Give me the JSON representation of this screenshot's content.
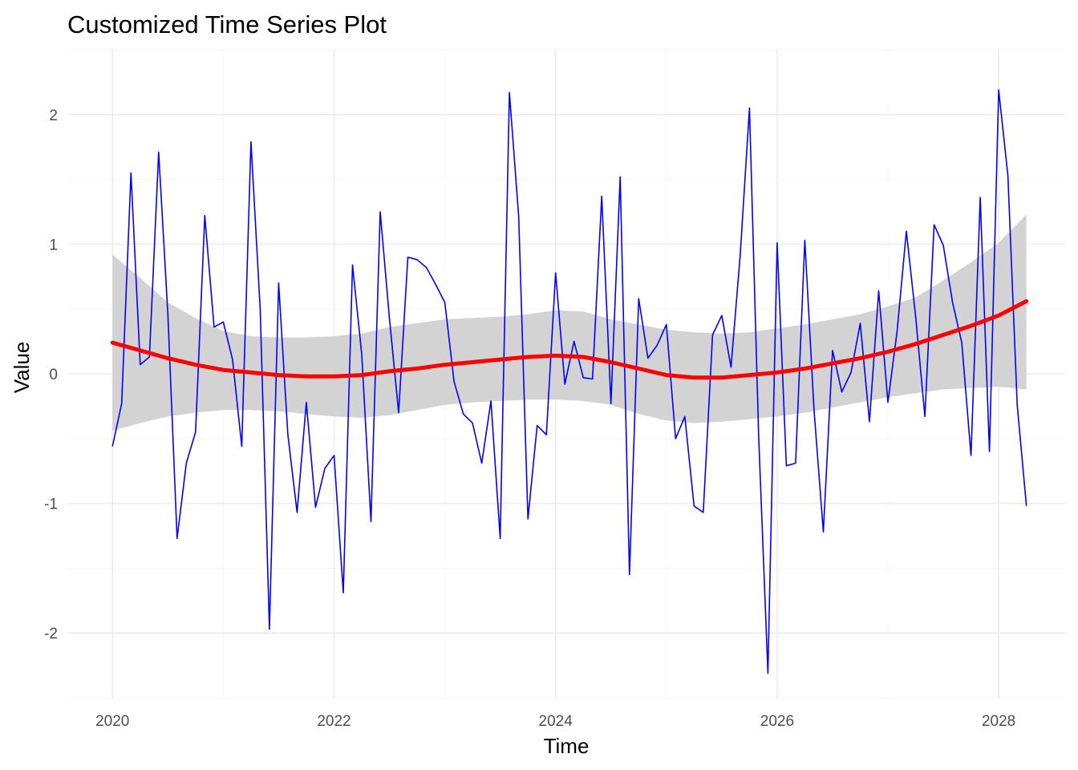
{
  "chart_data": {
    "type": "line",
    "title": "Customized Time Series Plot",
    "xlabel": "Time",
    "ylabel": "Value",
    "xlim": [
      2019.6,
      2028.6
    ],
    "ylim": [
      -2.5,
      2.5
    ],
    "x_ticks": [
      2020,
      2022,
      2024,
      2026,
      2028
    ],
    "x_tick_labels": [
      "2020",
      "2022",
      "2024",
      "2026",
      "2028"
    ],
    "y_ticks": [
      -2,
      -1,
      0,
      1,
      2
    ],
    "y_tick_labels": [
      "-2",
      "-1",
      "0",
      "1",
      "2"
    ],
    "grid": true,
    "theme": "minimal",
    "colors": {
      "series": "#0000ff",
      "smooth": "#ff0000",
      "ribbon": "#d3d3d3",
      "grid_major": "#ebebeb",
      "grid_minor": "#f5f5f5"
    },
    "series": [
      {
        "x": [
          2020.0,
          2020.0833,
          2020.1667,
          2020.25,
          2020.3333,
          2020.4167,
          2020.5,
          2020.5833,
          2020.6667,
          2020.75,
          2020.8333,
          2020.9167,
          2021.0,
          2021.0833,
          2021.1667,
          2021.25,
          2021.3333,
          2021.4167,
          2021.5,
          2021.5833,
          2021.6667,
          2021.75,
          2021.8333,
          2021.9167,
          2022.0,
          2022.0833,
          2022.1667,
          2022.25,
          2022.3333,
          2022.4167,
          2022.5,
          2022.5833,
          2022.6667,
          2022.75,
          2022.8333,
          2022.9167,
          2023.0,
          2023.0833,
          2023.1667,
          2023.25,
          2023.3333,
          2023.4167,
          2023.5,
          2023.5833,
          2023.6667,
          2023.75,
          2023.8333,
          2023.9167,
          2024.0,
          2024.0833,
          2024.1667,
          2024.25,
          2024.3333,
          2024.4167,
          2024.5,
          2024.5833,
          2024.6667,
          2024.75,
          2024.8333,
          2024.9167,
          2025.0,
          2025.0833,
          2025.1667,
          2025.25,
          2025.3333,
          2025.4167,
          2025.5,
          2025.5833,
          2025.6667,
          2025.75,
          2025.8333,
          2025.9167,
          2026.0,
          2026.0833,
          2026.1667,
          2026.25,
          2026.3333,
          2026.4167,
          2026.5,
          2026.5833,
          2026.6667,
          2026.75,
          2026.8333,
          2026.9167,
          2027.0,
          2027.0833,
          2027.1667,
          2027.25,
          2027.3333,
          2027.4167,
          2027.5,
          2027.5833,
          2027.6667,
          2027.75,
          2027.8333,
          2027.9167,
          2028.0,
          2028.0833,
          2028.1667,
          2028.25
        ],
        "values": [
          -0.56,
          -0.23,
          1.55,
          0.07,
          0.13,
          1.71,
          0.46,
          -1.27,
          -0.69,
          -0.45,
          1.22,
          0.36,
          0.4,
          0.11,
          -0.56,
          1.79,
          0.5,
          -1.97,
          0.7,
          -0.47,
          -1.07,
          -0.22,
          -1.03,
          -0.73,
          -0.63,
          -1.69,
          0.84,
          0.15,
          -1.14,
          1.25,
          0.43,
          -0.3,
          0.9,
          0.88,
          0.82,
          0.69,
          0.55,
          -0.06,
          -0.31,
          -0.38,
          -0.69,
          -0.21,
          -1.27,
          2.17,
          1.21,
          -1.12,
          -0.4,
          -0.47,
          0.78,
          -0.08,
          0.25,
          -0.03,
          -0.04,
          1.37,
          -0.23,
          1.52,
          -1.55,
          0.58,
          0.12,
          0.22,
          0.38,
          -0.5,
          -0.33,
          -1.02,
          -1.07,
          0.3,
          0.45,
          0.05,
          0.92,
          2.05,
          -0.49,
          -2.31,
          1.01,
          -0.71,
          -0.69,
          1.03,
          -0.28,
          -1.22,
          0.18,
          -0.14,
          0.01,
          0.39,
          -0.37,
          0.64,
          -0.22,
          0.33,
          1.1,
          0.44,
          -0.33,
          1.15,
          0.99,
          0.55,
          0.24,
          -0.63,
          1.36,
          -0.6,
          2.19,
          1.53,
          -0.24,
          -1.02
        ]
      },
      {
        "x": [
          2020.0,
          2020.25,
          2020.5,
          2020.75,
          2021.0,
          2021.25,
          2021.5,
          2021.75,
          2022.0,
          2022.25,
          2022.5,
          2022.75,
          2023.0,
          2023.25,
          2023.5,
          2023.75,
          2024.0,
          2024.25,
          2024.5,
          2024.75,
          2025.0,
          2025.25,
          2025.5,
          2025.75,
          2026.0,
          2026.25,
          2026.5,
          2026.75,
          2027.0,
          2027.25,
          2027.5,
          2027.75,
          2028.0,
          2028.25
        ],
        "values": [
          0.24,
          0.18,
          0.12,
          0.07,
          0.03,
          0.01,
          -0.01,
          -0.02,
          -0.02,
          -0.01,
          0.02,
          0.04,
          0.07,
          0.09,
          0.11,
          0.13,
          0.14,
          0.13,
          0.09,
          0.04,
          -0.01,
          -0.03,
          -0.03,
          -0.01,
          0.01,
          0.04,
          0.08,
          0.12,
          0.17,
          0.23,
          0.3,
          0.37,
          0.45,
          0.56
        ],
        "lower": [
          -0.44,
          -0.38,
          -0.33,
          -0.3,
          -0.28,
          -0.28,
          -0.29,
          -0.31,
          -0.33,
          -0.34,
          -0.32,
          -0.28,
          -0.24,
          -0.22,
          -0.21,
          -0.2,
          -0.2,
          -0.21,
          -0.24,
          -0.31,
          -0.36,
          -0.38,
          -0.37,
          -0.35,
          -0.33,
          -0.3,
          -0.26,
          -0.22,
          -0.18,
          -0.15,
          -0.12,
          -0.11,
          -0.1,
          -0.12
        ],
        "upper": [
          0.92,
          0.74,
          0.55,
          0.43,
          0.33,
          0.29,
          0.28,
          0.28,
          0.29,
          0.31,
          0.36,
          0.39,
          0.42,
          0.43,
          0.44,
          0.46,
          0.49,
          0.48,
          0.42,
          0.38,
          0.34,
          0.32,
          0.31,
          0.32,
          0.35,
          0.38,
          0.42,
          0.46,
          0.52,
          0.59,
          0.72,
          0.86,
          1.01,
          1.23
        ]
      }
    ]
  }
}
